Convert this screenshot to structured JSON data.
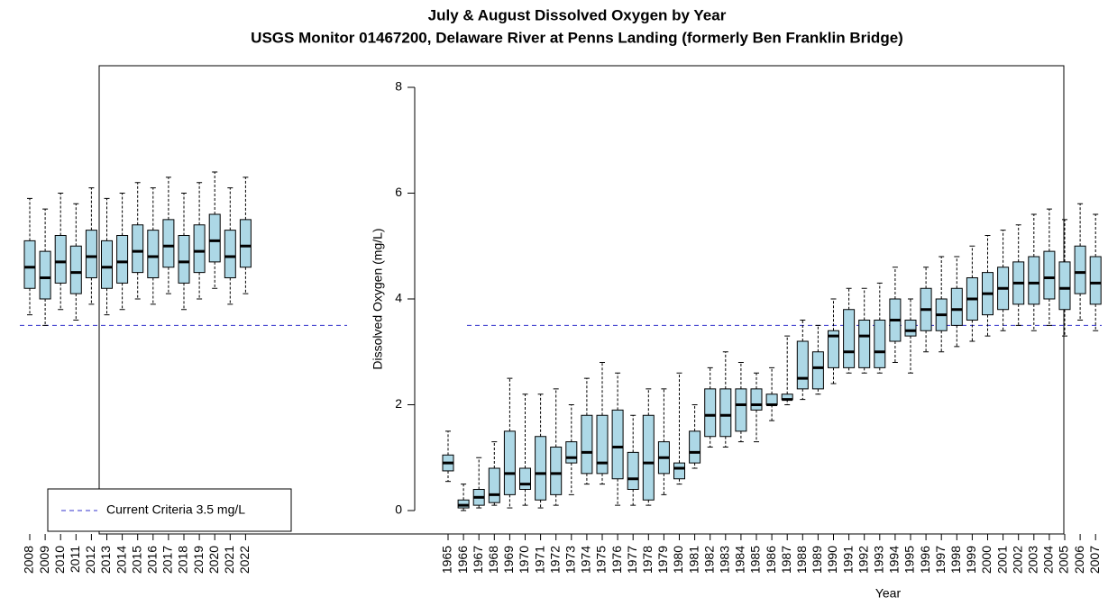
{
  "chart_data": {
    "type": "box",
    "title": "July & August Dissolved Oxygen by Year",
    "subtitle": "USGS Monitor 01467200, Delaware River at Penns Landing (formerly Ben Franklin Bridge)",
    "x_label": "Year",
    "y_label": "Dissolved Oxygen (mg/L)",
    "categories": [
      "1965",
      "1966",
      "1967",
      "1968",
      "1969",
      "1970",
      "1971",
      "1972",
      "1973",
      "1974",
      "1975",
      "1976",
      "1977",
      "1978",
      "1979",
      "1980",
      "1981",
      "1982",
      "1983",
      "1984",
      "1985",
      "1986",
      "1987",
      "1988",
      "1989",
      "1990",
      "1991",
      "1992",
      "1993",
      "1994",
      "1995",
      "1996",
      "1997",
      "1998",
      "1999",
      "2000",
      "2001",
      "2002",
      "2003",
      "2004",
      "2005",
      "2006",
      "2007",
      "2008",
      "2009",
      "2010",
      "2011",
      "2012",
      "2013",
      "2014",
      "2015",
      "2016",
      "2017",
      "2018",
      "2019",
      "2020",
      "2021",
      "2022"
    ],
    "whisker_low": [
      0.55,
      0,
      0.05,
      0.1,
      0.05,
      0.1,
      0.05,
      0.1,
      0.3,
      0.5,
      0.5,
      0.1,
      0.1,
      0.1,
      0.3,
      0.5,
      0.8,
      1.2,
      1.2,
      1.3,
      1.3,
      1.7,
      2.0,
      2.1,
      2.2,
      2.4,
      2.6,
      2.6,
      2.6,
      2.8,
      2.6,
      3.0,
      3.0,
      3.1,
      3.2,
      3.3,
      3.4,
      3.5,
      3.4,
      3.5,
      3.3,
      3.6,
      3.4,
      3.7,
      3.5,
      3.8,
      3.6,
      3.9,
      3.7,
      3.8,
      4.0,
      3.9,
      4.1,
      3.8,
      4.0,
      4.2,
      3.9,
      4.1
    ],
    "q1": [
      0.75,
      0.05,
      0.1,
      0.15,
      0.3,
      0.4,
      0.2,
      0.3,
      0.9,
      0.7,
      0.7,
      0.6,
      0.4,
      0.2,
      0.7,
      0.6,
      0.9,
      1.4,
      1.4,
      1.5,
      1.9,
      2.0,
      2.1,
      2.3,
      2.3,
      2.7,
      2.7,
      2.7,
      2.7,
      3.2,
      3.3,
      3.4,
      3.4,
      3.5,
      3.6,
      3.7,
      3.8,
      3.9,
      3.9,
      4.0,
      3.8,
      4.1,
      3.9,
      4.2,
      4.0,
      4.3,
      4.1,
      4.4,
      4.2,
      4.3,
      4.5,
      4.4,
      4.6,
      4.3,
      4.5,
      4.7,
      4.4,
      4.6
    ],
    "median": [
      0.9,
      0.1,
      0.25,
      0.3,
      0.7,
      0.5,
      0.7,
      0.7,
      1.0,
      1.1,
      0.9,
      1.2,
      0.6,
      0.9,
      1.0,
      0.8,
      1.1,
      1.8,
      1.8,
      2.0,
      2.0,
      2.0,
      2.1,
      2.5,
      2.7,
      3.3,
      3.0,
      3.3,
      3.0,
      3.6,
      3.4,
      3.8,
      3.7,
      3.8,
      4.0,
      4.1,
      4.2,
      4.3,
      4.3,
      4.4,
      4.2,
      4.5,
      4.3,
      4.6,
      4.4,
      4.7,
      4.5,
      4.8,
      4.6,
      4.7,
      4.9,
      4.8,
      5.0,
      4.7,
      4.9,
      5.1,
      4.8,
      5.0
    ],
    "q3": [
      1.05,
      0.2,
      0.4,
      0.8,
      1.5,
      0.8,
      1.4,
      1.2,
      1.3,
      1.8,
      1.8,
      1.9,
      1.1,
      1.8,
      1.3,
      0.9,
      1.5,
      2.3,
      2.3,
      2.3,
      2.3,
      2.2,
      2.2,
      3.2,
      3.0,
      3.4,
      3.8,
      3.6,
      3.6,
      4.0,
      3.6,
      4.2,
      4.0,
      4.2,
      4.4,
      4.5,
      4.6,
      4.7,
      4.8,
      4.9,
      4.7,
      5.0,
      4.8,
      5.1,
      4.9,
      5.2,
      5.0,
      5.3,
      5.1,
      5.2,
      5.4,
      5.3,
      5.5,
      5.2,
      5.4,
      5.6,
      5.3,
      5.5
    ],
    "whisker_high": [
      1.5,
      0.5,
      1.0,
      1.3,
      2.5,
      2.2,
      2.2,
      2.3,
      2.0,
      2.5,
      2.8,
      2.6,
      1.8,
      2.3,
      2.3,
      2.6,
      2.0,
      2.7,
      3.0,
      2.8,
      2.6,
      2.7,
      3.3,
      3.6,
      3.5,
      4.0,
      4.2,
      4.2,
      4.3,
      4.6,
      4.0,
      4.6,
      4.8,
      4.8,
      5.0,
      5.2,
      5.3,
      5.4,
      5.6,
      5.7,
      5.5,
      5.8,
      5.6,
      5.9,
      5.7,
      6.0,
      5.8,
      6.1,
      5.9,
      6.0,
      6.2,
      6.1,
      6.3,
      6.0,
      6.2,
      6.4,
      6.1,
      6.3
    ],
    "box_color": "#add8e6",
    "ylim": [
      0,
      8
    ],
    "yticks": [
      0,
      2,
      4,
      6,
      8
    ],
    "criteria": {
      "value": 3.5,
      "label": "Current Criteria 3.5 mg/L",
      "color": "#3333cc"
    }
  }
}
